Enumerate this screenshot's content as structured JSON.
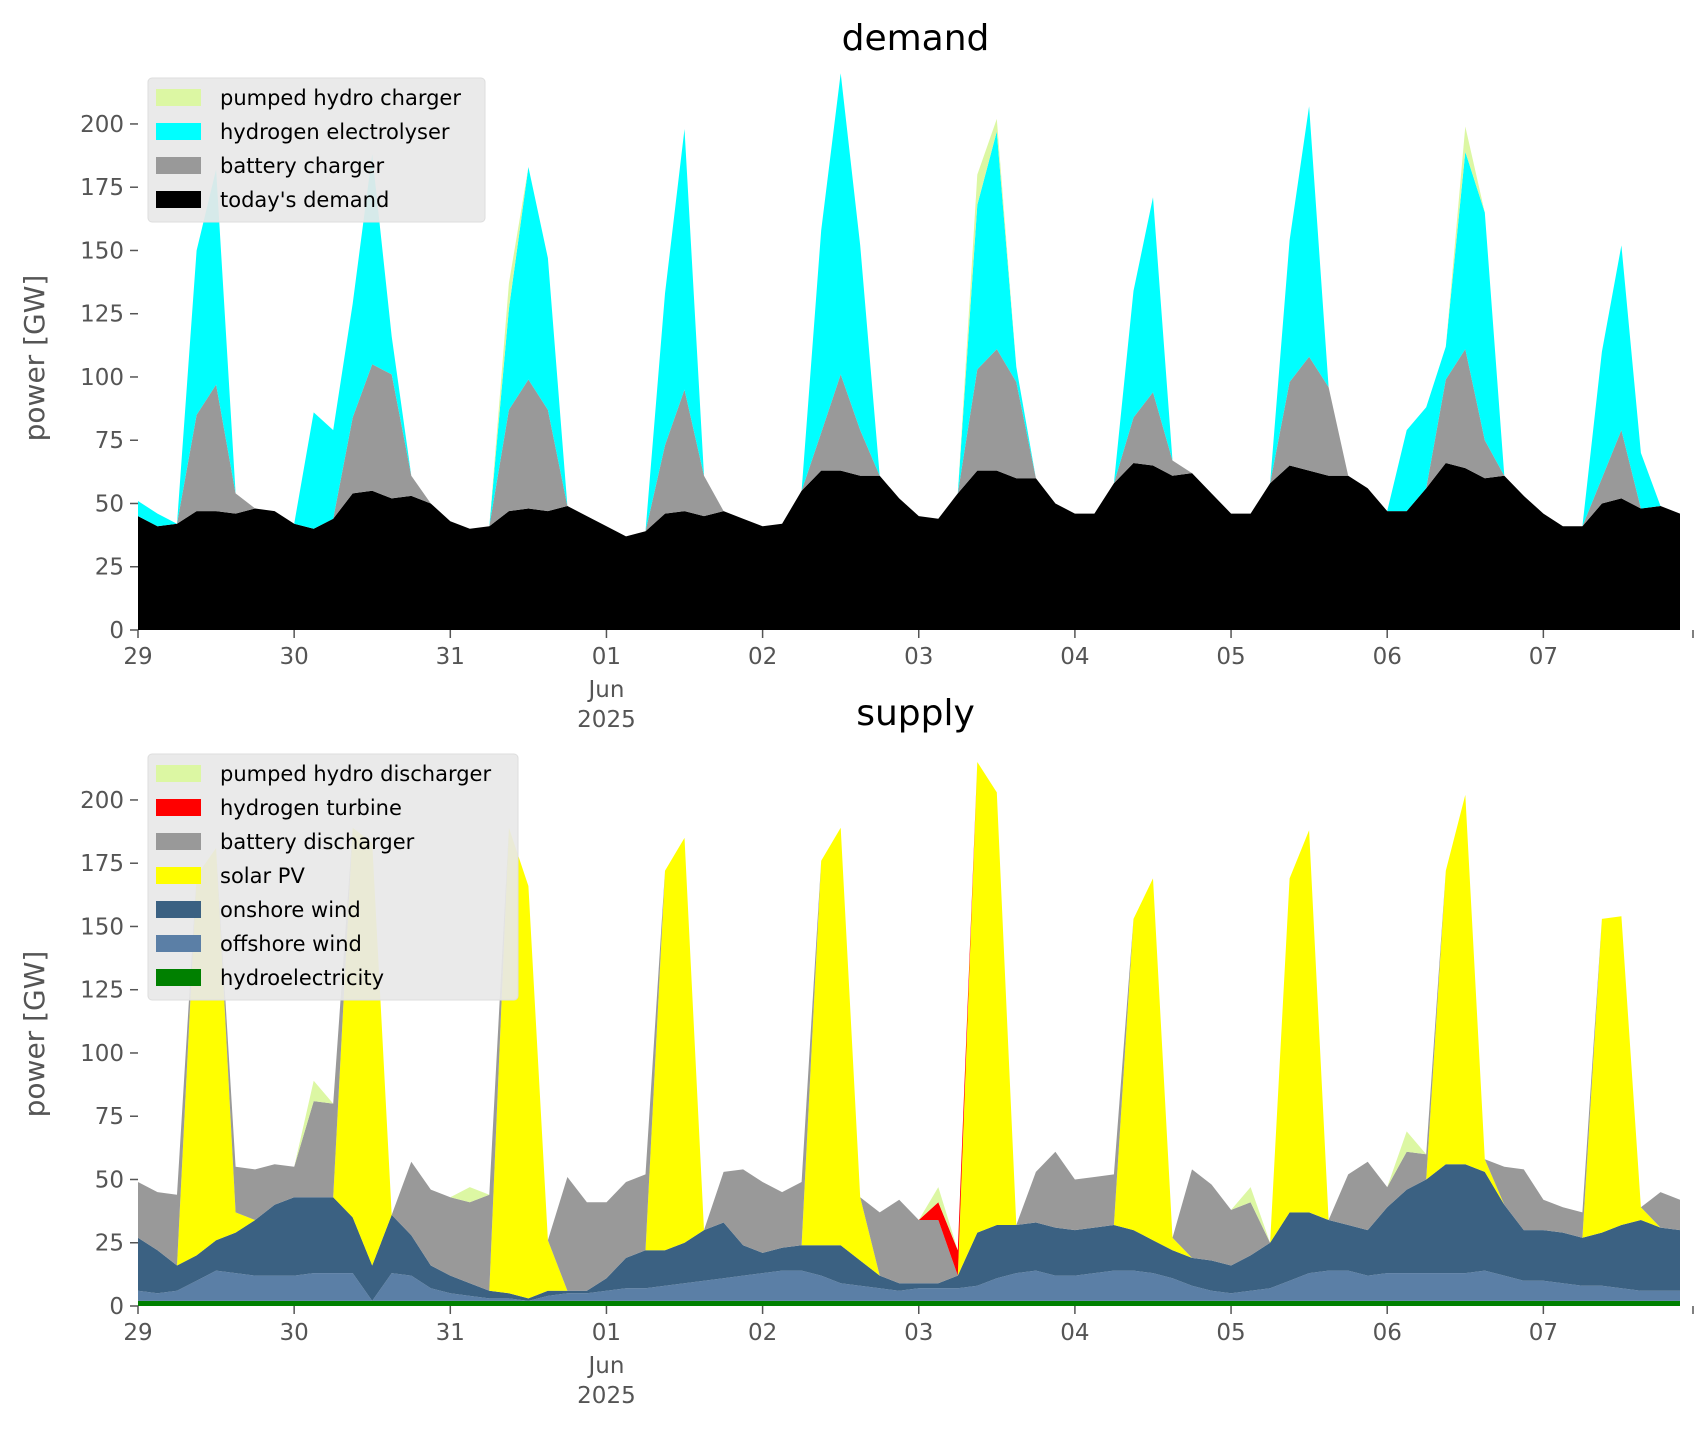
{
  "chart_data": [
    {
      "type": "area",
      "stacked": true,
      "title": "demand",
      "ylabel": "power [GW]",
      "xlabel": "",
      "ylim": [
        0,
        215
      ],
      "yticks": [
        0,
        25,
        50,
        75,
        100,
        125,
        150,
        175,
        200
      ],
      "xlim": [
        "2025-05-29T00:00",
        "2025-06-07T23:00"
      ],
      "x_tick_labels": [
        "29",
        "30",
        "31",
        "01",
        "02",
        "03",
        "04",
        "05",
        "06",
        "07"
      ],
      "x_tick_dates": [
        "2025-05-29",
        "2025-05-30",
        "2025-05-31",
        "2025-06-01",
        "2025-06-02",
        "2025-06-03",
        "2025-06-04",
        "2025-06-05",
        "2025-06-06",
        "2025-06-07"
      ],
      "x_secondary_label": [
        "Jun",
        "2025"
      ],
      "x_sample_hours": [
        0,
        3,
        6,
        9,
        12,
        15,
        18,
        21
      ],
      "grid": false,
      "legend_position": "top-left",
      "series": [
        {
          "name": "today's demand",
          "color": "#000000",
          "values": [
            45,
            41,
            42,
            47,
            47,
            46,
            48,
            47,
            42,
            40,
            44,
            54,
            55,
            52,
            53,
            50,
            43,
            40,
            41,
            47,
            48,
            47,
            49,
            45,
            41,
            37,
            39,
            46,
            47,
            45,
            47,
            44,
            41,
            42,
            55,
            63,
            63,
            61,
            61,
            52,
            45,
            44,
            54,
            63,
            63,
            60,
            60,
            50,
            46,
            46,
            58,
            66,
            65,
            61,
            62,
            54,
            46,
            46,
            58,
            65,
            63,
            61,
            61,
            56,
            47,
            47,
            56,
            66,
            64,
            60,
            61,
            53,
            46,
            41,
            41,
            50,
            52,
            48,
            49,
            46
          ]
        },
        {
          "name": "battery charger",
          "color": "#999999",
          "values": [
            0,
            0,
            0,
            38,
            50,
            8,
            0,
            0,
            0,
            0,
            0,
            30,
            50,
            49,
            8,
            0,
            0,
            0,
            0,
            40,
            51,
            40,
            0,
            0,
            0,
            0,
            0,
            27,
            48,
            16,
            0,
            0,
            0,
            0,
            0,
            15,
            38,
            18,
            0,
            0,
            0,
            0,
            0,
            40,
            48,
            38,
            0,
            0,
            0,
            0,
            0,
            18,
            29,
            6,
            0,
            0,
            0,
            0,
            0,
            33,
            45,
            35,
            0,
            0,
            0,
            0,
            0,
            33,
            47,
            15,
            0,
            0,
            0,
            0,
            0,
            10,
            27,
            0,
            0,
            0
          ]
        },
        {
          "name": "hydrogen electrolyser",
          "color": "#00ffff",
          "values": [
            6,
            5,
            0,
            65,
            85,
            0,
            0,
            0,
            0,
            46,
            35,
            45,
            83,
            15,
            0,
            0,
            0,
            0,
            0,
            40,
            84,
            60,
            0,
            0,
            0,
            0,
            0,
            60,
            103,
            0,
            0,
            0,
            0,
            0,
            0,
            80,
            119,
            73,
            0,
            0,
            0,
            0,
            0,
            65,
            86,
            6,
            0,
            0,
            0,
            0,
            0,
            50,
            77,
            0,
            0,
            0,
            0,
            0,
            0,
            56,
            99,
            0,
            0,
            0,
            0,
            32,
            32,
            13,
            78,
            90,
            0,
            0,
            0,
            0,
            0,
            50,
            73,
            22,
            0,
            0
          ]
        },
        {
          "name": "pumped hydro charger",
          "color": "#dcf7a3",
          "values": [
            0,
            0,
            0,
            0,
            0,
            0,
            0,
            0,
            0,
            0,
            0,
            0,
            0,
            0,
            0,
            0,
            0,
            0,
            0,
            10,
            0,
            0,
            0,
            0,
            0,
            0,
            0,
            0,
            0,
            0,
            0,
            0,
            0,
            0,
            0,
            0,
            0,
            0,
            0,
            0,
            0,
            0,
            0,
            12,
            5,
            0,
            0,
            0,
            0,
            0,
            0,
            0,
            0,
            0,
            0,
            0,
            0,
            0,
            0,
            0,
            0,
            0,
            0,
            0,
            0,
            0,
            0,
            0,
            10,
            0,
            0,
            0,
            0,
            0,
            0,
            0,
            0,
            0,
            0,
            0
          ]
        }
      ]
    },
    {
      "type": "area",
      "stacked": true,
      "title": "supply",
      "ylabel": "power [GW]",
      "xlabel": "",
      "ylim": [
        0,
        215
      ],
      "yticks": [
        0,
        25,
        50,
        75,
        100,
        125,
        150,
        175,
        200
      ],
      "xlim": [
        "2025-05-29T00:00",
        "2025-06-07T23:00"
      ],
      "x_tick_labels": [
        "29",
        "30",
        "31",
        "01",
        "02",
        "03",
        "04",
        "05",
        "06",
        "07"
      ],
      "x_tick_dates": [
        "2025-05-29",
        "2025-05-30",
        "2025-05-31",
        "2025-06-01",
        "2025-06-02",
        "2025-06-03",
        "2025-06-04",
        "2025-06-05",
        "2025-06-06",
        "2025-06-07"
      ],
      "x_secondary_label": [
        "Jun",
        "2025"
      ],
      "x_sample_hours": [
        0,
        3,
        6,
        9,
        12,
        15,
        18,
        21
      ],
      "grid": false,
      "legend_position": "top-left",
      "series": [
        {
          "name": "hydroelectricity",
          "color": "#008000",
          "values": [
            2,
            2,
            2,
            2,
            2,
            2,
            2,
            2,
            2,
            2,
            2,
            2,
            2,
            2,
            2,
            2,
            2,
            2,
            2,
            2,
            2,
            2,
            2,
            2,
            2,
            2,
            2,
            2,
            2,
            2,
            2,
            2,
            2,
            2,
            2,
            2,
            2,
            2,
            2,
            2,
            2,
            2,
            2,
            2,
            2,
            2,
            2,
            2,
            2,
            2,
            2,
            2,
            2,
            2,
            2,
            2,
            2,
            2,
            2,
            2,
            2,
            2,
            2,
            2,
            2,
            2,
            2,
            2,
            2,
            2,
            2,
            2,
            2,
            2,
            2,
            2,
            2,
            2,
            2,
            2
          ]
        },
        {
          "name": "offshore wind",
          "color": "#5b7fa6",
          "values": [
            4,
            3,
            4,
            8,
            12,
            11,
            10,
            10,
            10,
            11,
            11,
            11,
            0,
            11,
            10,
            5,
            3,
            2,
            1,
            1,
            0,
            2,
            3,
            3,
            4,
            5,
            5,
            6,
            7,
            8,
            9,
            10,
            11,
            12,
            12,
            10,
            7,
            6,
            5,
            4,
            5,
            5,
            5,
            6,
            9,
            11,
            12,
            10,
            10,
            11,
            12,
            12,
            11,
            9,
            6,
            4,
            3,
            4,
            5,
            8,
            11,
            12,
            12,
            10,
            11,
            11,
            11,
            11,
            11,
            12,
            10,
            8,
            8,
            7,
            6,
            6,
            5,
            4,
            4,
            4
          ]
        },
        {
          "name": "onshore wind",
          "color": "#3b6182",
          "values": [
            21,
            17,
            10,
            10,
            12,
            16,
            22,
            28,
            31,
            30,
            30,
            22,
            14,
            23,
            16,
            9,
            7,
            5,
            3,
            2,
            1,
            2,
            1,
            1,
            5,
            12,
            15,
            14,
            16,
            20,
            22,
            12,
            8,
            9,
            10,
            12,
            15,
            10,
            5,
            3,
            2,
            2,
            5,
            21,
            21,
            19,
            19,
            19,
            18,
            18,
            18,
            16,
            13,
            11,
            11,
            12,
            11,
            14,
            18,
            27,
            24,
            20,
            18,
            18,
            26,
            33,
            37,
            43,
            43,
            39,
            28,
            20,
            20,
            20,
            19,
            21,
            25,
            28,
            25,
            24
          ]
        },
        {
          "name": "solar PV",
          "color": "#ffff00",
          "values": [
            0,
            0,
            0,
            150,
            155,
            8,
            0,
            0,
            0,
            0,
            0,
            154,
            167,
            0,
            0,
            0,
            0,
            0,
            0,
            184,
            163,
            20,
            0,
            0,
            0,
            0,
            0,
            150,
            160,
            0,
            0,
            0,
            0,
            0,
            0,
            152,
            165,
            25,
            0,
            0,
            0,
            0,
            0,
            186,
            171,
            0,
            0,
            0,
            0,
            0,
            0,
            123,
            143,
            5,
            0,
            0,
            0,
            0,
            0,
            132,
            151,
            0,
            0,
            0,
            0,
            0,
            0,
            116,
            146,
            5,
            0,
            0,
            0,
            0,
            0,
            124,
            122,
            5,
            0,
            0
          ]
        },
        {
          "name": "battery discharger",
          "color": "#999999",
          "values": [
            22,
            23,
            28,
            0,
            0,
            18,
            20,
            16,
            12,
            38,
            37,
            0,
            0,
            0,
            29,
            30,
            31,
            32,
            38,
            0,
            0,
            0,
            45,
            35,
            30,
            30,
            30,
            0,
            0,
            0,
            20,
            30,
            28,
            22,
            25,
            0,
            0,
            0,
            25,
            33,
            25,
            25,
            0,
            0,
            0,
            0,
            20,
            30,
            20,
            20,
            20,
            0,
            0,
            0,
            35,
            30,
            22,
            21,
            0,
            0,
            0,
            0,
            20,
            27,
            8,
            15,
            10,
            0,
            0,
            0,
            15,
            24,
            12,
            10,
            10,
            0,
            0,
            0,
            14,
            12
          ]
        },
        {
          "name": "hydrogen turbine",
          "color": "#ff0000",
          "values": [
            0,
            0,
            0,
            0,
            0,
            0,
            0,
            0,
            0,
            0,
            0,
            0,
            0,
            0,
            0,
            0,
            0,
            0,
            0,
            0,
            0,
            0,
            0,
            0,
            0,
            0,
            0,
            0,
            0,
            0,
            0,
            0,
            0,
            0,
            0,
            0,
            0,
            0,
            0,
            0,
            0,
            7,
            10,
            0,
            0,
            0,
            0,
            0,
            0,
            0,
            0,
            0,
            0,
            0,
            0,
            0,
            0,
            0,
            0,
            0,
            0,
            0,
            0,
            0,
            0,
            0,
            0,
            0,
            0,
            0,
            0,
            0,
            0,
            0,
            0,
            0,
            0,
            0,
            0,
            0
          ]
        },
        {
          "name": "pumped hydro discharger",
          "color": "#dcf7a3",
          "values": [
            0,
            0,
            0,
            0,
            0,
            0,
            0,
            0,
            0,
            8,
            0,
            0,
            0,
            0,
            0,
            0,
            0,
            6,
            0,
            0,
            0,
            0,
            0,
            0,
            0,
            0,
            0,
            0,
            0,
            0,
            0,
            0,
            0,
            0,
            0,
            0,
            0,
            0,
            0,
            0,
            0,
            6,
            0,
            0,
            0,
            0,
            0,
            0,
            0,
            0,
            0,
            0,
            0,
            0,
            0,
            0,
            0,
            6,
            0,
            0,
            0,
            0,
            0,
            0,
            0,
            8,
            0,
            0,
            0,
            0,
            0,
            0,
            0,
            0,
            0,
            0,
            0,
            0,
            0,
            0
          ]
        }
      ]
    }
  ]
}
